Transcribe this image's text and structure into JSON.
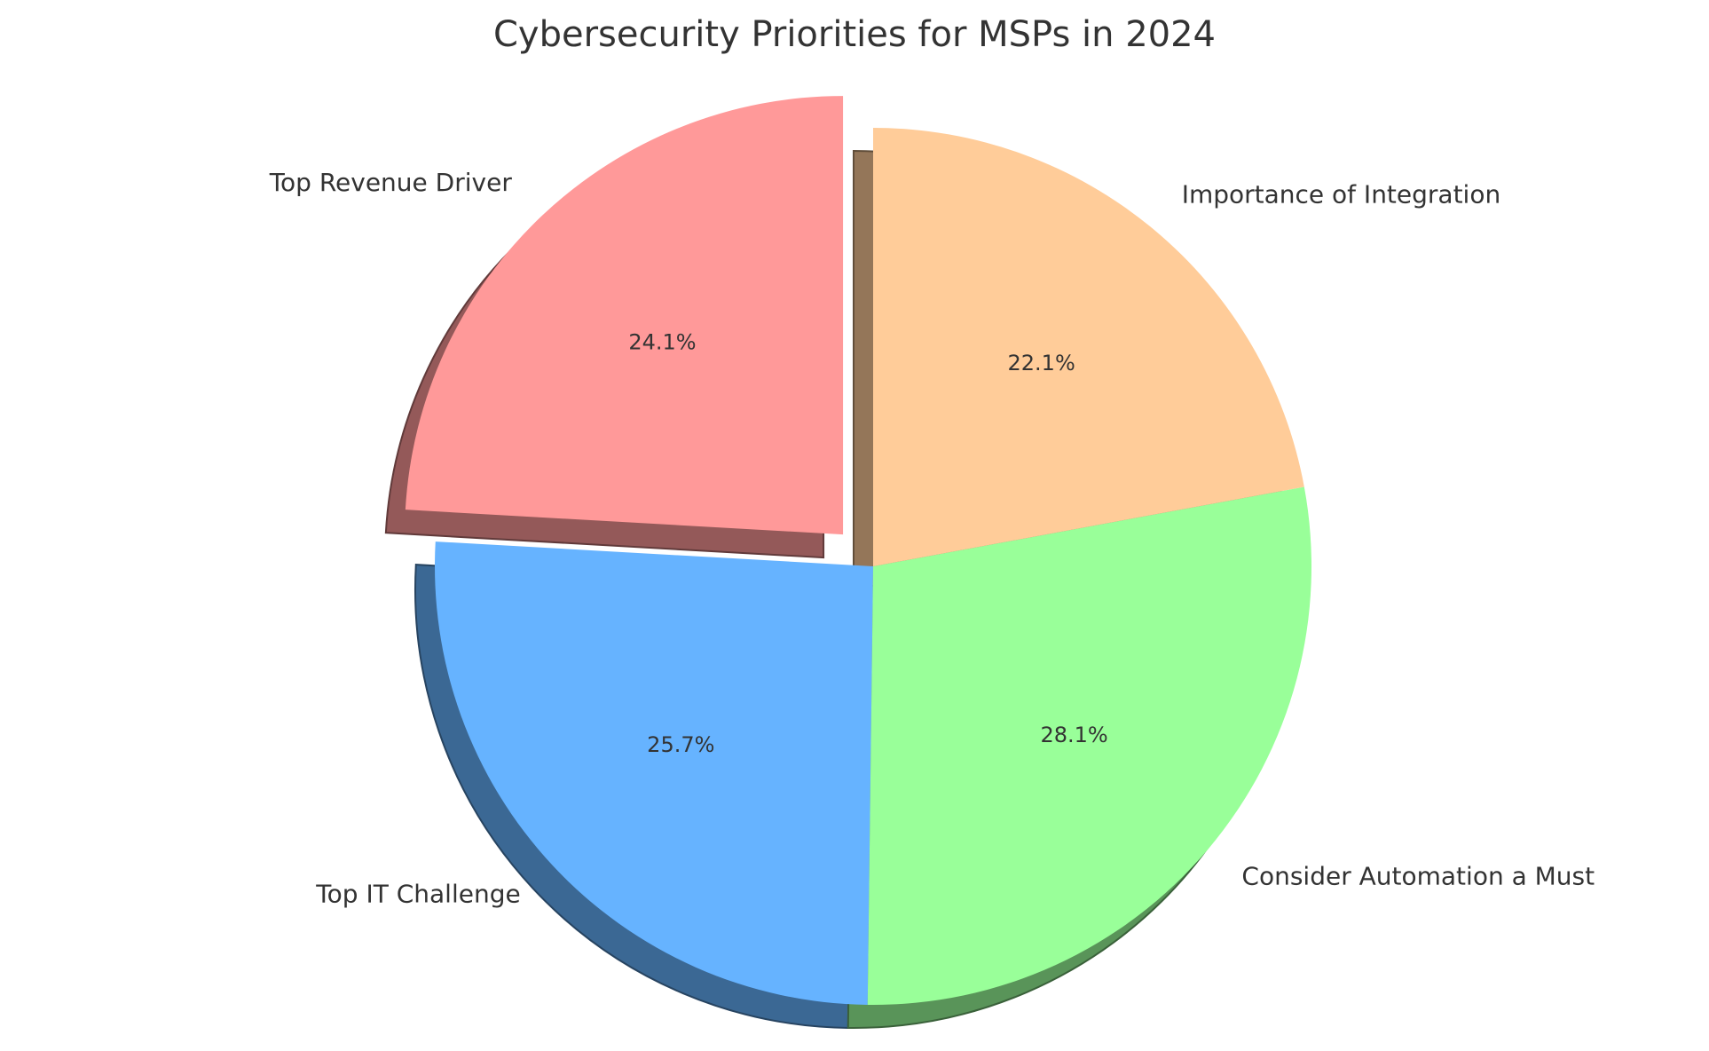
{
  "chart_data": {
    "type": "pie",
    "title": "Cybersecurity Priorities for MSPs in 2024",
    "slices": [
      {
        "label": "Top Revenue Driver",
        "value": 24.1,
        "pct_label": "24.1%",
        "color": "#ff9999",
        "exploded": true
      },
      {
        "label": "Top IT Challenge",
        "value": 25.7,
        "pct_label": "25.7%",
        "color": "#66b3ff",
        "exploded": false
      },
      {
        "label": "Consider Automation a Must",
        "value": 28.1,
        "pct_label": "28.1%",
        "color": "#99ff99",
        "exploded": false
      },
      {
        "label": "Importance of Integration",
        "value": 22.1,
        "pct_label": "22.1%",
        "color": "#ffcc99",
        "exploded": false
      }
    ],
    "start_angle": "top (12 o'clock)",
    "direction": "counterclockwise",
    "shadow": true
  }
}
